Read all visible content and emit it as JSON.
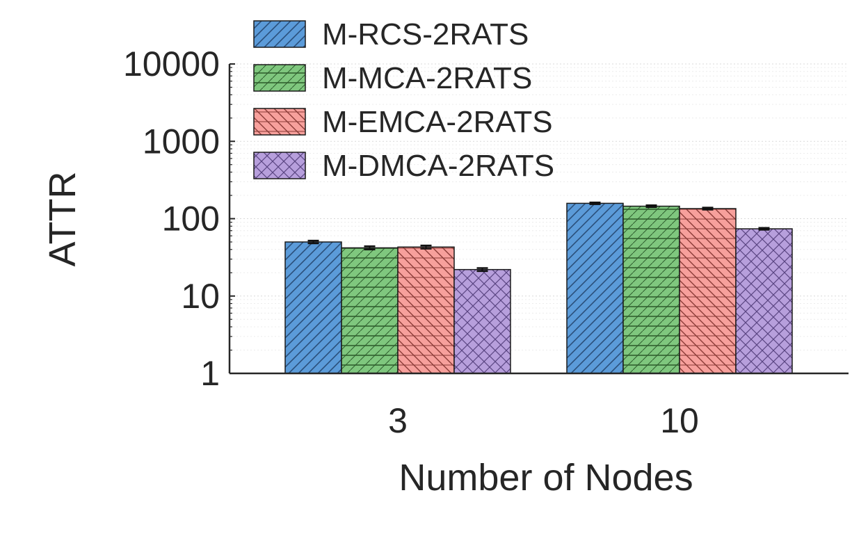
{
  "chart_data": {
    "type": "bar",
    "xlabel": "Number of Nodes",
    "ylabel": "ATTR",
    "yscale": "log",
    "ylim": [
      1,
      10000
    ],
    "yticks": [
      "1",
      "10",
      "100",
      "1000",
      "10000"
    ],
    "grid": "on",
    "legend_position": "top",
    "categories": [
      "3",
      "10"
    ],
    "series": [
      {
        "name": "M-RCS-2RATS",
        "values": [
          50,
          158
        ],
        "errors": [
          2,
          4
        ],
        "color": "#5b9bd9",
        "hatch": "forward"
      },
      {
        "name": "M-MCA-2RATS",
        "values": [
          42,
          145
        ],
        "errors": [
          2,
          4
        ],
        "color": "#7fc77e",
        "hatch": "horizontal"
      },
      {
        "name": "M-EMCA-2RATS",
        "values": [
          43,
          135
        ],
        "errors": [
          2,
          4
        ],
        "color": "#f7a09c",
        "hatch": "back"
      },
      {
        "name": "M-DMCA-2RATS",
        "values": [
          22,
          74
        ],
        "errors": [
          1,
          2
        ],
        "color": "#b79fdc",
        "hatch": "cross"
      }
    ]
  }
}
